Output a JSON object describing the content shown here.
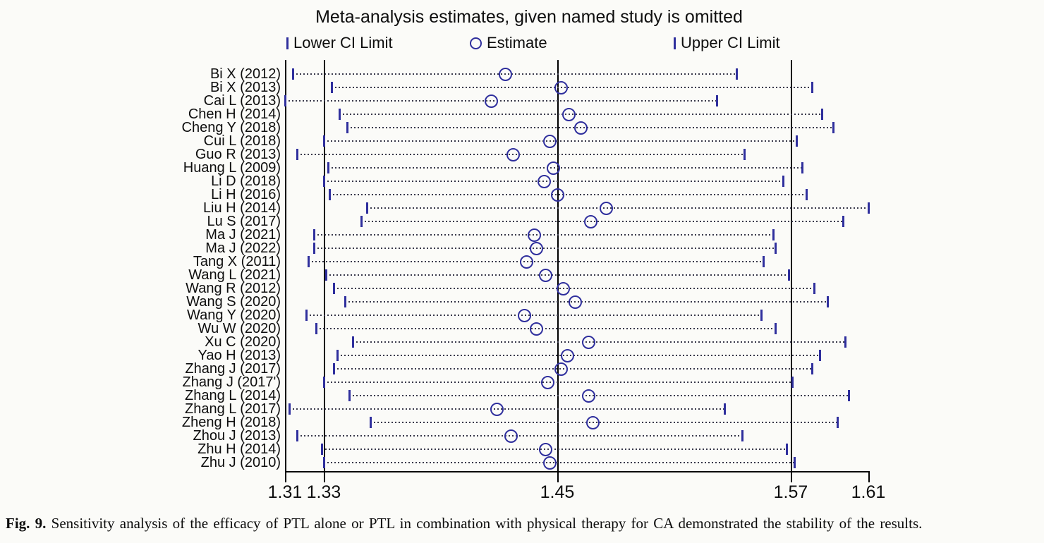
{
  "figure": {
    "caption_prefix": "Fig. 9.",
    "caption_text": " Sensitivity analysis of the efficacy of PTL alone or PTL in combination with physical therapy for CA demonstrated the stability of the results."
  },
  "chart_data": {
    "type": "scatter",
    "variant": "leave-one-out sensitivity analysis (forest-style CI plot)",
    "title": "Meta-analysis estimates, given named study is omitted",
    "legend": {
      "lower": "Lower CI Limit",
      "estimate": "Estimate",
      "upper": "Upper CI Limit"
    },
    "legend_position": "top",
    "grid": false,
    "xlim": [
      1.31,
      1.61
    ],
    "x_ticks": [
      "1.31",
      "1.33",
      "1.45",
      "1.57",
      "1.61"
    ],
    "reference_lines": [
      1.33,
      1.45,
      1.57
    ],
    "colors": {
      "marker": "#2f2f9d",
      "ci_dots": "#39394a",
      "axis": "#000000",
      "background": "#fbfbf8"
    },
    "studies": [
      {
        "label": "Bi X (2012)",
        "lower": 1.314,
        "estimate": 1.423,
        "upper": 1.542
      },
      {
        "label": "Bi X (2013)",
        "lower": 1.334,
        "estimate": 1.452,
        "upper": 1.581
      },
      {
        "label": "Cai L (2013)",
        "lower": 1.31,
        "estimate": 1.416,
        "upper": 1.532
      },
      {
        "label": "Chen H (2014)",
        "lower": 1.338,
        "estimate": 1.456,
        "upper": 1.586
      },
      {
        "label": "Cheng Y (2018)",
        "lower": 1.342,
        "estimate": 1.462,
        "upper": 1.592
      },
      {
        "label": "Cui L (2018)",
        "lower": 1.33,
        "estimate": 1.446,
        "upper": 1.573
      },
      {
        "label": "Guo R (2013)",
        "lower": 1.316,
        "estimate": 1.427,
        "upper": 1.546
      },
      {
        "label": "Huang L (2009)",
        "lower": 1.332,
        "estimate": 1.448,
        "upper": 1.576
      },
      {
        "label": "Li D (2018)",
        "lower": 1.33,
        "estimate": 1.443,
        "upper": 1.566
      },
      {
        "label": "Li H (2016)",
        "lower": 1.333,
        "estimate": 1.45,
        "upper": 1.578
      },
      {
        "label": "Liu H (2014)",
        "lower": 1.352,
        "estimate": 1.475,
        "upper": 1.61
      },
      {
        "label": "Lu S (2017)",
        "lower": 1.349,
        "estimate": 1.467,
        "upper": 1.597
      },
      {
        "label": "Ma J (2021)",
        "lower": 1.325,
        "estimate": 1.438,
        "upper": 1.561
      },
      {
        "label": "Ma J (2022)",
        "lower": 1.325,
        "estimate": 1.439,
        "upper": 1.562
      },
      {
        "label": "Tang X (2011)",
        "lower": 1.322,
        "estimate": 1.434,
        "upper": 1.556
      },
      {
        "label": "Wang L (2021)",
        "lower": 1.331,
        "estimate": 1.444,
        "upper": 1.569
      },
      {
        "label": "Wang R (2012)",
        "lower": 1.335,
        "estimate": 1.453,
        "upper": 1.582
      },
      {
        "label": "Wang S (2020)",
        "lower": 1.341,
        "estimate": 1.459,
        "upper": 1.589
      },
      {
        "label": "Wang Y (2020)",
        "lower": 1.321,
        "estimate": 1.433,
        "upper": 1.555
      },
      {
        "label": "Wu W (2020)",
        "lower": 1.326,
        "estimate": 1.439,
        "upper": 1.562
      },
      {
        "label": "Xu C (2020)",
        "lower": 1.345,
        "estimate": 1.466,
        "upper": 1.598
      },
      {
        "label": "Yao H (2013)",
        "lower": 1.337,
        "estimate": 1.455,
        "upper": 1.585
      },
      {
        "label": "Zhang J (2017)",
        "lower": 1.335,
        "estimate": 1.452,
        "upper": 1.581
      },
      {
        "label": "Zhang J (2017')",
        "lower": 1.33,
        "estimate": 1.445,
        "upper": 1.571
      },
      {
        "label": "Zhang L (2014)",
        "lower": 1.343,
        "estimate": 1.466,
        "upper": 1.6
      },
      {
        "label": "Zhang L (2017)",
        "lower": 1.312,
        "estimate": 1.419,
        "upper": 1.536
      },
      {
        "label": "Zheng H (2018)",
        "lower": 1.354,
        "estimate": 1.468,
        "upper": 1.594
      },
      {
        "label": "Zhou J (2013)",
        "lower": 1.316,
        "estimate": 1.426,
        "upper": 1.545
      },
      {
        "label": "Zhu H (2014)",
        "lower": 1.329,
        "estimate": 1.444,
        "upper": 1.568
      },
      {
        "label": "Zhu J (2010)",
        "lower": 1.33,
        "estimate": 1.446,
        "upper": 1.572
      }
    ]
  }
}
